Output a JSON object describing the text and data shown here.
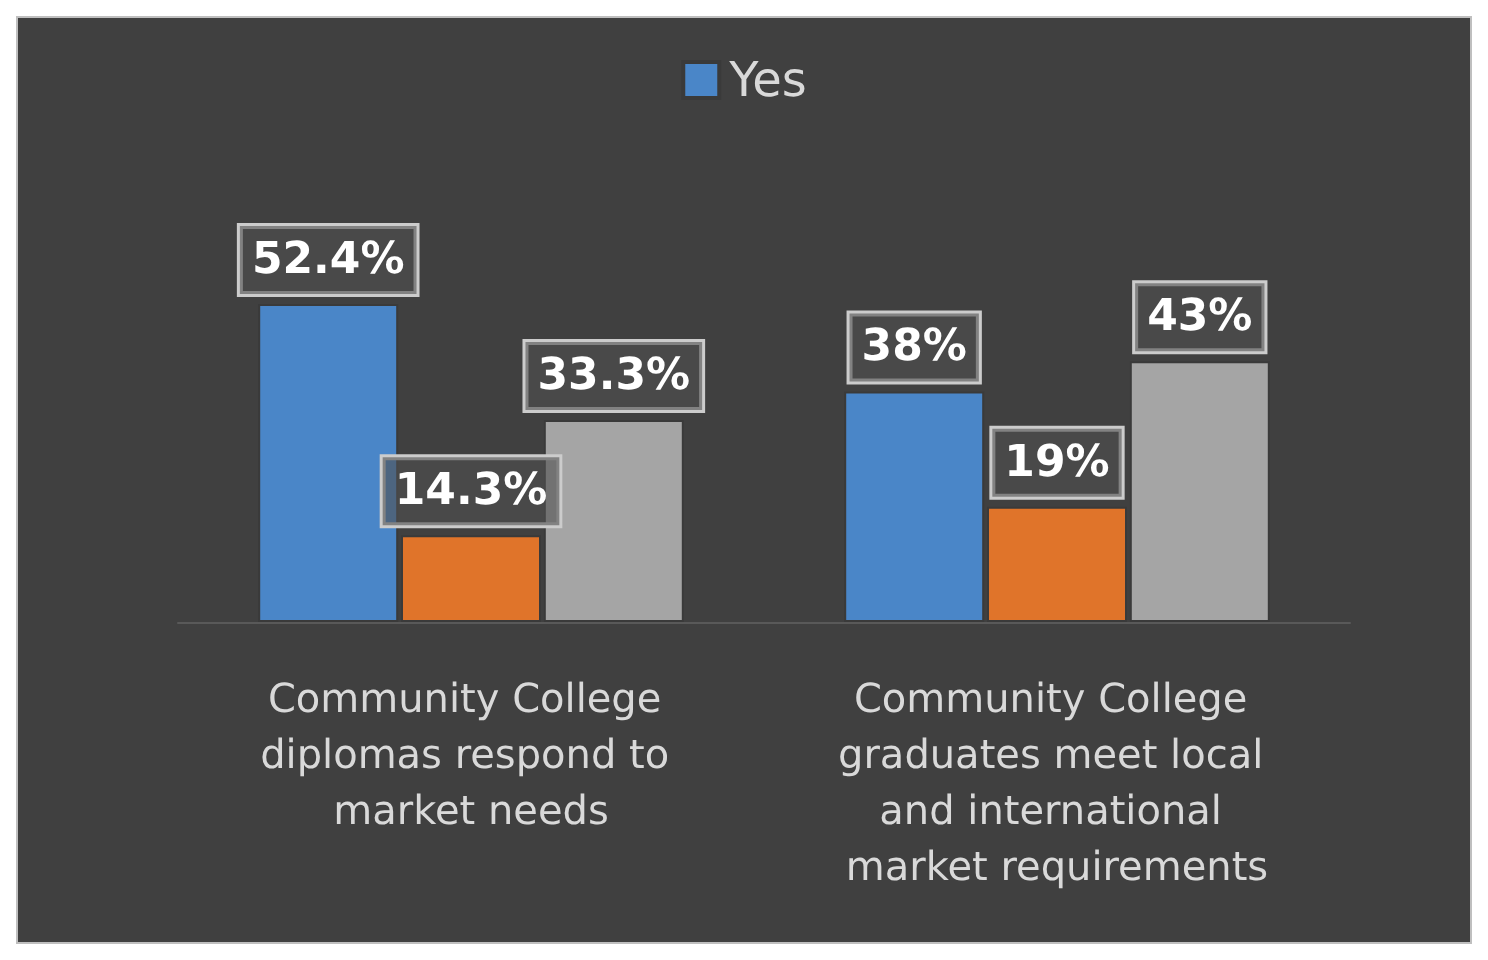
{
  "chart_data": {
    "type": "bar",
    "categories": [
      "Community College diplomas respond to market needs",
      "Community College graduates meet local and international market requirements"
    ],
    "series": [
      {
        "name": "Yes",
        "color": "#4a86c8",
        "values": [
          52.4,
          38
        ],
        "value_labels": [
          "52.4%",
          "38%"
        ]
      },
      {
        "color": "#e0742a",
        "values": [
          14.3,
          19
        ],
        "value_labels": [
          "14.3%",
          "19%"
        ]
      },
      {
        "color": "#a5a5a5",
        "values": [
          33.3,
          43
        ],
        "value_labels": [
          "33.3%",
          "43%"
        ]
      }
    ],
    "legend": "top"
  }
}
